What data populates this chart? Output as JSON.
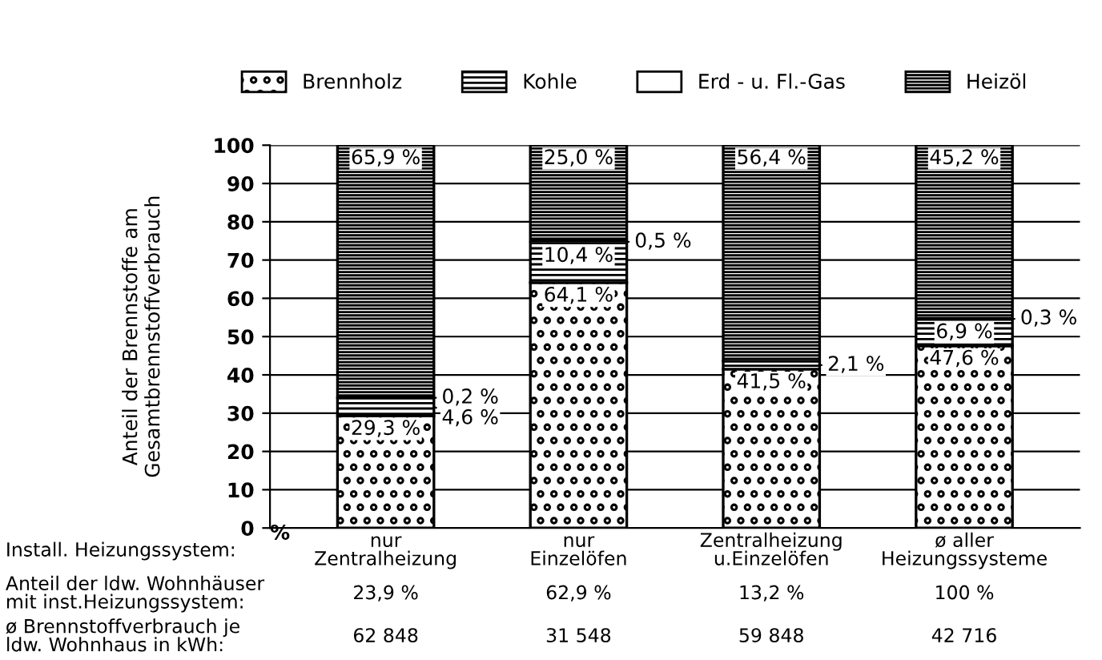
{
  "chart_data": {
    "type": "bar",
    "stacked": true,
    "categories": [
      "nur\nZentralheizung",
      "nur\nEinzelöfen",
      "Zentralheizung\nu.Einzelöfen",
      "ø aller\nHeizungssysteme"
    ],
    "series": [
      {
        "name": "Brennholz",
        "color": "#000000",
        "values": [
          29.3,
          64.1,
          41.5,
          47.6
        ],
        "value_labels": [
          "29,3 %",
          "64,1 %",
          "41,5 %",
          "47,6 %"
        ]
      },
      {
        "name": "Kohle",
        "color": "#000000",
        "values": [
          4.6,
          10.4,
          2.1,
          6.9
        ],
        "value_labels": [
          "4,6 %",
          "10,4 %",
          "2,1 %",
          "6,9 %"
        ]
      },
      {
        "name": "Erd - u. Fl.-Gas",
        "color": "#ffffff",
        "values": [
          0.2,
          0.5,
          null,
          0.3
        ],
        "value_labels": [
          "0,2 %",
          "0,5 %",
          null,
          "0,3 %"
        ]
      },
      {
        "name": "Heizöl",
        "color": "#000000",
        "values": [
          65.9,
          25.0,
          56.4,
          45.2
        ],
        "value_labels": [
          "65,9 %",
          "25,0 %",
          "56,4 %",
          "45,2 %"
        ]
      }
    ],
    "ylim": [
      0,
      100
    ],
    "yticks": [
      0,
      10,
      20,
      30,
      40,
      50,
      60,
      70,
      80,
      90,
      100
    ],
    "grid": "y",
    "legend": "top",
    "ylabel": "Anteil der Brennstoffe am\nGesamtbrennstoffverbrauch",
    "annotations": [
      "%",
      "Install. Heizungssystem:",
      "Anteil der ldw. Wohnhäuser\nmit inst.Heizungssystem:",
      "23,9 %",
      "62,9 %",
      "13,2 %",
      "100 %",
      "ø Brennstoffverbrauch je\nldw. Wohnhaus in kWh:",
      "62 848",
      "31 548",
      "59 848",
      "42 716"
    ]
  }
}
